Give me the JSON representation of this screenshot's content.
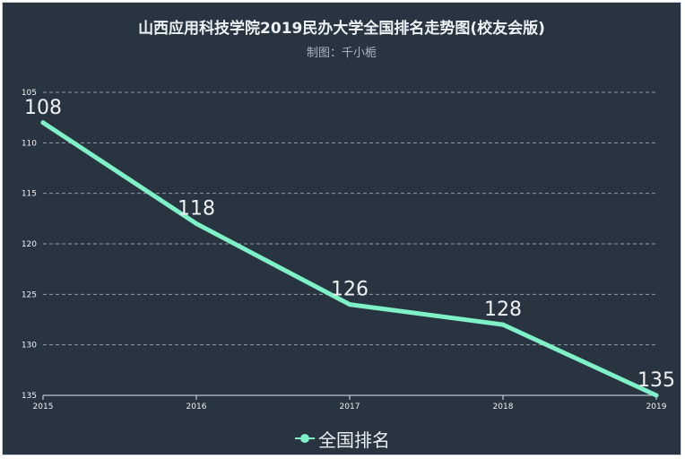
{
  "title": "山西应用科技学院2019民办大学全国排名走势图(校友会版)",
  "subtitle": "制图：千小栀",
  "colors": {
    "background": "#293441",
    "series": "#7ff0c8",
    "axis": "#dfe5ea",
    "grid": "#8f9aa6",
    "text": "#eef1f4"
  },
  "chart_data": {
    "type": "line",
    "x": [
      "2015",
      "2016",
      "2017",
      "2018",
      "2019"
    ],
    "series": [
      {
        "name": "全国排名",
        "values": [
          108,
          118,
          126,
          128,
          135
        ]
      }
    ],
    "y_axis": {
      "min": 105,
      "max": 135,
      "inverted": true,
      "ticks": [
        105,
        110,
        115,
        120,
        125,
        130,
        135
      ]
    },
    "grid": true,
    "legend_position": "bottom-center"
  }
}
